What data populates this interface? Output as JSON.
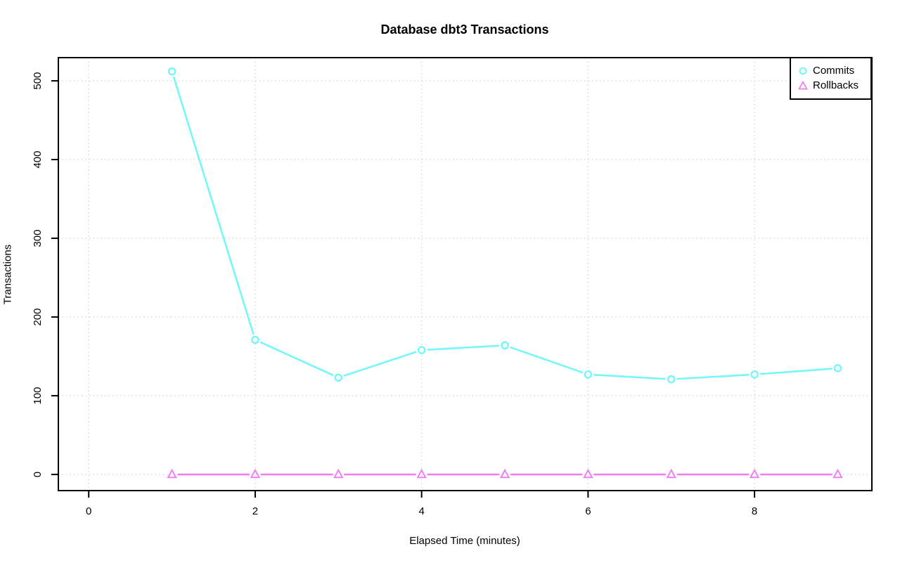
{
  "title": "Database dbt3 Transactions",
  "colors": {
    "commits": "#76F7F7",
    "rollbacks": "#EE82EE",
    "grid": "#D6D6D6",
    "axis": "#000000",
    "background": "#FFFFFF",
    "marker_fill": "#FFFFFF"
  },
  "chart_data": {
    "type": "line",
    "title": "Database dbt3 Transactions",
    "xlabel": "Elapsed Time (minutes)",
    "ylabel": "Transactions",
    "x": [
      1,
      2,
      3,
      4,
      5,
      6,
      7,
      8,
      9
    ],
    "series": [
      {
        "name": "Commits",
        "marker": "circle",
        "color": "#76F7F7",
        "values": [
          512,
          171,
          123,
          158,
          164,
          127,
          121,
          127,
          135
        ]
      },
      {
        "name": "Rollbacks",
        "marker": "triangle",
        "color": "#EE82EE",
        "values": [
          0,
          0,
          0,
          0,
          0,
          0,
          0,
          0,
          0
        ]
      }
    ],
    "x_ticks": [
      0,
      2,
      4,
      6,
      8
    ],
    "y_ticks": [
      0,
      100,
      200,
      300,
      400,
      500
    ],
    "xlim": [
      -0.365,
      9.41
    ],
    "ylim": [
      -20.5,
      529.5
    ],
    "grid": true,
    "grid_style": "dotted",
    "line_style": "points-with-gaps",
    "legend_position": "topright"
  }
}
